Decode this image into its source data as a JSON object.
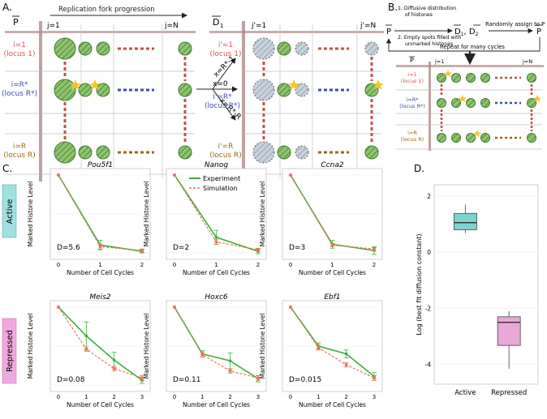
{
  "panels": {
    "A": "A.",
    "B": "B.",
    "C": "C.",
    "D": "D."
  },
  "panel_a": {
    "p_bar": "P",
    "d1_bar": "D",
    "d1_sub": "1",
    "fork_label": "Replication fork progression",
    "j_first": "j=1",
    "j_last": "j=N",
    "j_first_prime": "j'=1",
    "j_last_prime": "j'=N",
    "loci_left": [
      {
        "line1": "i=1",
        "line2": "(locus 1)",
        "color": "#d9534f"
      },
      {
        "line1": "i=R*",
        "line2": "(locus R*)",
        "color": "#3b4ea8"
      },
      {
        "line1": "i=R",
        "line2": "(locus R)",
        "color": "#9a6a10"
      }
    ],
    "loci_right": [
      {
        "line1": "i'=1",
        "line2": "(locus 1)",
        "color": "#d9534f"
      },
      {
        "line1": "i'=R*",
        "line2": "(locus R*)",
        "color": "#3b4ea8"
      },
      {
        "line1": "i'=R",
        "line2": "(locus R)",
        "color": "#9a6a10"
      }
    ],
    "arrow_labels": [
      "x=R*-1",
      "x=0",
      "x=R*-R"
    ]
  },
  "panel_b": {
    "p_left": "P",
    "step1_line1": "1. Diffusive distribution",
    "step1_line2": "of histones",
    "step2_line1": "2. Empty spots filled with",
    "step2_line2": "unmarked histones",
    "d_pair": "D",
    "d_sub1": "1",
    "d_sub2": "2",
    "assign": "Randomly assign to P",
    "p_right": "P",
    "repeat": "Repeat for many cycles",
    "p_bar": "P",
    "j_first": "j=1",
    "j_last": "j=N",
    "loci": [
      {
        "line1": "i=1",
        "line2": "(locus 1)",
        "color": "#d9534f"
      },
      {
        "line1": "i=R*",
        "line2": "(locus R*)",
        "color": "#3b4ea8"
      },
      {
        "line1": "i=R",
        "line2": "(locus R)",
        "color": "#9a6a10"
      }
    ]
  },
  "panel_c": {
    "row_labels": {
      "active": "Active",
      "repressed": "Repressed"
    },
    "ylabel": "Marked Histone Level",
    "xlabel": "Number of Cell Cycles",
    "legend": {
      "experiment": "Experiment",
      "simulation": "Simulation"
    },
    "colors": {
      "experiment": "#3ab03a",
      "simulation": "#e8745a",
      "active_box": "#9fe0e0",
      "repressed_box": "#f0a8e0"
    }
  },
  "panel_d": {
    "ylabel": "Log (best fit diffusion constant)",
    "colors": {
      "active": "#7dd3d0",
      "repressed": "#e8a8d8"
    }
  },
  "chart_data": [
    {
      "type": "line",
      "title": "Pou5f1",
      "x": [
        0,
        1,
        2
      ],
      "ylim": [
        0,
        1
      ],
      "annotation": "D=5.6",
      "series": [
        {
          "name": "Experiment",
          "values": [
            1,
            0.1,
            0.02
          ],
          "err": [
            0,
            0.06,
            0.02
          ]
        },
        {
          "name": "Simulation",
          "values": [
            1,
            0.08,
            0.03
          ],
          "err": [
            0,
            0.03,
            0.02
          ]
        }
      ]
    },
    {
      "type": "line",
      "title": "Nanog",
      "x": [
        0,
        1,
        2
      ],
      "ylim": [
        0,
        1
      ],
      "annotation": "D=2",
      "series": [
        {
          "name": "Experiment",
          "values": [
            1,
            0.2,
            0.02
          ],
          "err": [
            0,
            0.09,
            0.03
          ]
        },
        {
          "name": "Simulation",
          "values": [
            1,
            0.14,
            0.04
          ],
          "err": [
            0,
            0.03,
            0.02
          ]
        }
      ]
    },
    {
      "type": "line",
      "title": "Ccna2",
      "x": [
        0,
        1,
        2
      ],
      "ylim": [
        0,
        1
      ],
      "annotation": "D=3",
      "series": [
        {
          "name": "Experiment",
          "values": [
            1,
            0.11,
            0.03
          ],
          "err": [
            0,
            0.05,
            0.05
          ]
        },
        {
          "name": "Simulation",
          "values": [
            1,
            0.1,
            0.05
          ],
          "err": [
            0,
            0.02,
            0.02
          ]
        }
      ]
    },
    {
      "type": "line",
      "title": "Meis2",
      "x": [
        0,
        1,
        2,
        3
      ],
      "ylim": [
        0,
        1
      ],
      "annotation": "D=0.08",
      "series": [
        {
          "name": "Experiment",
          "values": [
            1,
            0.63,
            0.32,
            0.06
          ],
          "err": [
            0,
            0.18,
            0.1,
            0.04
          ]
        },
        {
          "name": "Simulation",
          "values": [
            1,
            0.46,
            0.21,
            0.09
          ],
          "err": [
            0,
            0.03,
            0.03,
            0.03
          ]
        }
      ]
    },
    {
      "type": "line",
      "title": "Hoxc6",
      "x": [
        0,
        1,
        2,
        3
      ],
      "ylim": [
        0,
        1
      ],
      "annotation": "D=0.11",
      "series": [
        {
          "name": "Experiment",
          "values": [
            1,
            0.4,
            0.31,
            0.08
          ],
          "err": [
            0,
            0.04,
            0.1,
            0.04
          ]
        },
        {
          "name": "Simulation",
          "values": [
            1,
            0.39,
            0.18,
            0.09
          ],
          "err": [
            0,
            0.03,
            0.03,
            0.03
          ]
        }
      ]
    },
    {
      "type": "line",
      "title": "Ebf1",
      "x": [
        0,
        1,
        2,
        3
      ],
      "ylim": [
        0,
        1
      ],
      "annotation": "D=0.015",
      "series": [
        {
          "name": "Experiment",
          "values": [
            1,
            0.5,
            0.4,
            0.11
          ],
          "err": [
            0,
            0.04,
            0.05,
            0.05
          ]
        },
        {
          "name": "Simulation",
          "values": [
            1,
            0.48,
            0.26,
            0.09
          ],
          "err": [
            0,
            0.03,
            0.03,
            0.03
          ]
        }
      ]
    },
    {
      "type": "box",
      "ylabel": "Log (best fit diffusion constant)",
      "ylim": [
        -4.7,
        2.4
      ],
      "yticks": [
        -4,
        -2,
        0,
        2
      ],
      "categories": [
        "Active",
        "Repressed"
      ],
      "boxes": [
        {
          "name": "Active",
          "min": 0.68,
          "q1": 0.8,
          "median": 1.05,
          "q3": 1.38,
          "max": 1.7
        },
        {
          "name": "Repressed",
          "min": -4.15,
          "q1": -3.32,
          "median": -2.5,
          "q3": -2.3,
          "max": -2.1
        }
      ]
    }
  ]
}
